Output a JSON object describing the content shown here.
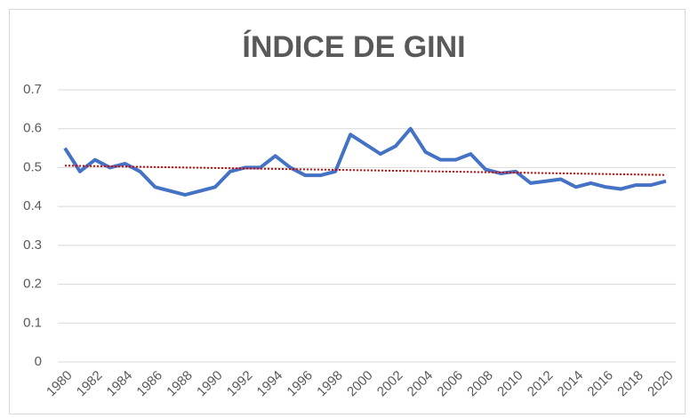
{
  "chart_data": {
    "type": "line",
    "title": "ÍNDICE DE GINI",
    "x": [
      1980,
      1981,
      1982,
      1983,
      1984,
      1985,
      1986,
      1987,
      1988,
      1989,
      1990,
      1991,
      1992,
      1993,
      1994,
      1995,
      1996,
      1997,
      1998,
      1999,
      2000,
      2001,
      2002,
      2003,
      2004,
      2005,
      2006,
      2007,
      2008,
      2009,
      2010,
      2011,
      2012,
      2013,
      2014,
      2015,
      2016,
      2017,
      2018,
      2019,
      2020
    ],
    "series": [
      {
        "color": "#4472c4",
        "values": [
          0.55,
          0.49,
          0.52,
          0.5,
          0.51,
          0.49,
          0.45,
          0.44,
          0.43,
          0.44,
          0.45,
          0.49,
          0.5,
          0.5,
          0.53,
          0.5,
          0.48,
          0.48,
          0.49,
          0.585,
          0.56,
          0.535,
          0.555,
          0.6,
          0.54,
          0.52,
          0.52,
          0.535,
          0.495,
          0.485,
          0.49,
          0.46,
          0.465,
          0.47,
          0.45,
          0.46,
          0.45,
          0.445,
          0.455,
          0.455,
          0.465
        ]
      }
    ],
    "trendline": {
      "color": "#e00000",
      "x": [
        1980,
        2020
      ],
      "values": [
        0.505,
        0.481
      ]
    },
    "xlim": [
      1980,
      2020
    ],
    "xticks": [
      1980,
      1982,
      1984,
      1986,
      1988,
      1990,
      1992,
      1994,
      1996,
      1998,
      2000,
      2002,
      2004,
      2006,
      2008,
      2010,
      2012,
      2014,
      2016,
      2018,
      2020
    ],
    "ylim": [
      0,
      0.7
    ],
    "yticks": [
      0,
      0.1,
      0.2,
      0.3,
      0.4,
      0.5,
      0.6,
      0.7
    ],
    "grid": true
  }
}
